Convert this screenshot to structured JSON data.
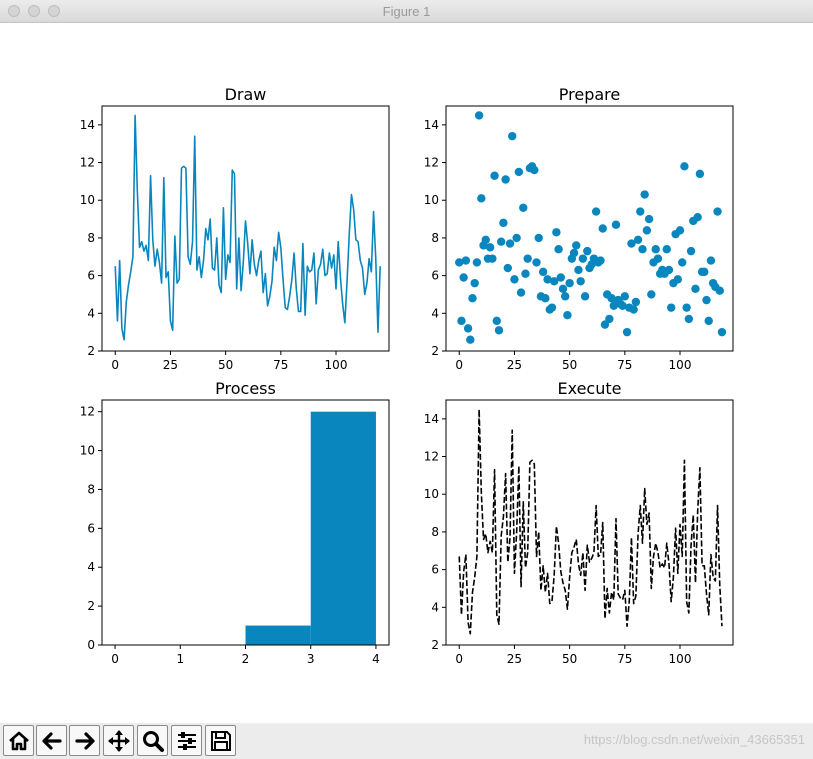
{
  "window": {
    "title": "Figure 1"
  },
  "toolbar": {
    "buttons": [
      {
        "name": "home-icon"
      },
      {
        "name": "back-icon"
      },
      {
        "name": "forward-icon"
      },
      {
        "name": "pan-icon"
      },
      {
        "name": "zoom-icon"
      },
      {
        "name": "configure-subplots-icon"
      },
      {
        "name": "save-icon"
      }
    ]
  },
  "watermark": "https://blog.csdn.net/weixin_43665351",
  "chart_data": [
    {
      "type": "line",
      "title": "Draw",
      "color": "#0a86be",
      "linestyle": "solid",
      "xlim": [
        -6,
        124
      ],
      "ylim": [
        2,
        15
      ],
      "xticks": [
        0,
        25,
        50,
        75,
        100
      ],
      "yticks": [
        2,
        4,
        6,
        8,
        10,
        12,
        14
      ],
      "y": [
        6.5,
        3.6,
        6.8,
        3.2,
        2.6,
        4.6,
        5.5,
        6.2,
        7,
        14.5,
        10.5,
        7.5,
        7.8,
        7.3,
        7.6,
        6.8,
        11.3,
        7.9,
        6.5,
        7.4,
        6.7,
        5.6,
        11.2,
        5.9,
        6.2,
        3.6,
        3.1,
        8.1,
        5.6,
        5.8,
        11.7,
        11.8,
        11.7,
        7,
        6.6,
        7.8,
        13.4,
        6.3,
        7,
        5.9,
        6.8,
        8.5,
        7.9,
        9,
        6.4,
        6.3,
        8,
        5.5,
        5.1,
        9.6,
        5.8,
        7.1,
        6.7,
        11.6,
        11.4,
        5.3,
        8,
        5.2,
        6.7,
        8.9,
        7.7,
        6.1,
        7.9,
        6.6,
        6,
        6.8,
        7.3,
        5.1,
        6.1,
        4.4,
        4.9,
        5.7,
        7.5,
        6.8,
        8.3,
        7.5,
        5.8,
        4.3,
        4.2,
        4.9,
        5.8,
        7.2,
        5.3,
        4.1,
        4.1,
        7.7,
        3.9,
        6.5,
        6.2,
        6.3,
        7.2,
        4.5,
        6.3,
        6.6,
        7.4,
        6,
        6.1,
        7.2,
        6.4,
        7.1,
        5.3,
        7.8,
        5.9,
        4.5,
        3.5,
        5.7,
        8.2,
        10.3,
        9.5,
        7.9,
        7.8,
        6.8,
        6.4,
        5,
        5.6,
        6.9,
        6.2,
        9.4,
        6.9,
        3,
        6.5
      ],
      "xs_start": 0
    },
    {
      "type": "scatter",
      "title": "Prepare",
      "color": "#0a86be",
      "xlim": [
        -6,
        124
      ],
      "ylim": [
        2,
        15
      ],
      "xticks": [
        0,
        25,
        50,
        75,
        100
      ],
      "yticks": [
        2,
        4,
        6,
        8,
        10,
        12,
        14
      ],
      "x": [
        0,
        1,
        2,
        3,
        4,
        5,
        6,
        7,
        8,
        9,
        10,
        11,
        12,
        13,
        14,
        15,
        16,
        17,
        18,
        19,
        20,
        21,
        22,
        23,
        24,
        25,
        26,
        27,
        28,
        29,
        30,
        31,
        32,
        33,
        34,
        35,
        36,
        37,
        38,
        39,
        40,
        41,
        42,
        43,
        44,
        45,
        46,
        47,
        48,
        49,
        50,
        51,
        52,
        53,
        54,
        55,
        56,
        57,
        58,
        59,
        60,
        61,
        62,
        63,
        64,
        65,
        66,
        67,
        68,
        69,
        70,
        71,
        72,
        73,
        74,
        75,
        76,
        77,
        78,
        79,
        80,
        81,
        82,
        83,
        84,
        85,
        86,
        87,
        88,
        89,
        90,
        91,
        92,
        93,
        94,
        95,
        96,
        97,
        98,
        99,
        100,
        101,
        102,
        103,
        104,
        105,
        106,
        107,
        108,
        109,
        110,
        111,
        112,
        113,
        114,
        115,
        116,
        117,
        118,
        119
      ],
      "y": [
        6.7,
        3.6,
        5.9,
        6.8,
        3.2,
        2.6,
        4.8,
        5.6,
        6.7,
        14.5,
        10.1,
        7.6,
        7.9,
        6.9,
        7.5,
        6.9,
        11.3,
        3.6,
        3.1,
        7.8,
        8.8,
        11.1,
        6.4,
        7.7,
        13.4,
        5.8,
        8,
        11.5,
        5.1,
        9.6,
        6.1,
        6.9,
        11.7,
        11.8,
        11.6,
        6.7,
        8,
        4.9,
        6.2,
        4.8,
        5.8,
        4.2,
        4.3,
        5.7,
        8.3,
        7.4,
        5.9,
        5.3,
        4.9,
        3.9,
        5.6,
        6.9,
        7.2,
        7.6,
        6.3,
        5.7,
        6.9,
        4.9,
        7.3,
        6.4,
        6.6,
        6.9,
        9.4,
        6.7,
        6.8,
        8.5,
        3.4,
        5,
        3.7,
        4.8,
        4.4,
        8.7,
        4.7,
        4.5,
        4.4,
        4.9,
        3,
        4.3,
        7.7,
        4.2,
        4.6,
        7.9,
        9.4,
        7.4,
        10.3,
        8.4,
        9,
        5,
        6.7,
        7.4,
        6.9,
        6.1,
        6.3,
        6.1,
        7.4,
        6.3,
        4.3,
        5.6,
        8.2,
        5.8,
        8.4,
        6.7,
        11.8,
        4.3,
        3.7,
        7.3,
        8.9,
        5.3,
        9.1,
        11.4,
        6.2,
        6.2,
        4.7,
        3.6,
        6.8,
        5.6,
        5.4,
        9.4,
        5.2,
        3
      ]
    },
    {
      "type": "bar",
      "title": "Process",
      "color": "#0a86be",
      "xlim": [
        -0.2,
        4.2
      ],
      "ylim": [
        0,
        12.6
      ],
      "xticks": [
        0,
        1,
        2,
        3,
        4
      ],
      "yticks": [
        0,
        2,
        4,
        6,
        8,
        10,
        12
      ],
      "bins": [
        [
          2,
          3,
          1
        ],
        [
          3,
          4,
          12
        ]
      ]
    },
    {
      "type": "line",
      "title": "Execute",
      "color": "#000000",
      "linestyle": "dashed",
      "xlim": [
        -6,
        124
      ],
      "ylim": [
        2,
        15
      ],
      "xticks": [
        0,
        25,
        50,
        75,
        100
      ],
      "yticks": [
        2,
        4,
        6,
        8,
        10,
        12,
        14
      ],
      "y": [
        6.7,
        3.6,
        5.9,
        6.8,
        3.2,
        2.6,
        4.8,
        5.6,
        6.7,
        14.5,
        10.1,
        7.6,
        7.9,
        6.9,
        7.5,
        6.9,
        11.3,
        3.6,
        3.1,
        7.8,
        8.8,
        11.1,
        6.4,
        7.7,
        13.4,
        5.8,
        8,
        11.5,
        5.1,
        9.6,
        6.1,
        6.9,
        11.7,
        11.8,
        11.6,
        6.7,
        8,
        4.9,
        6.2,
        4.8,
        5.8,
        4.2,
        4.3,
        5.7,
        8.3,
        7.4,
        5.9,
        5.3,
        4.9,
        3.9,
        5.6,
        6.9,
        7.2,
        7.6,
        6.3,
        5.7,
        6.9,
        4.9,
        7.3,
        6.4,
        6.6,
        6.9,
        9.4,
        6.7,
        6.8,
        8.5,
        3.4,
        5,
        3.7,
        4.8,
        4.4,
        8.7,
        4.7,
        4.5,
        4.4,
        4.9,
        3,
        4.3,
        7.7,
        4.2,
        4.6,
        7.9,
        9.4,
        7.4,
        10.3,
        8.4,
        9,
        5,
        6.7,
        7.4,
        6.9,
        6.1,
        6.3,
        6.1,
        7.4,
        6.3,
        4.3,
        5.6,
        8.2,
        5.8,
        8.4,
        6.7,
        11.8,
        4.3,
        3.7,
        7.3,
        8.9,
        5.3,
        9.1,
        11.4,
        6.2,
        6.2,
        4.7,
        3.6,
        6.8,
        5.6,
        5.4,
        9.4,
        5.2,
        3
      ],
      "xs_start": 0
    }
  ]
}
